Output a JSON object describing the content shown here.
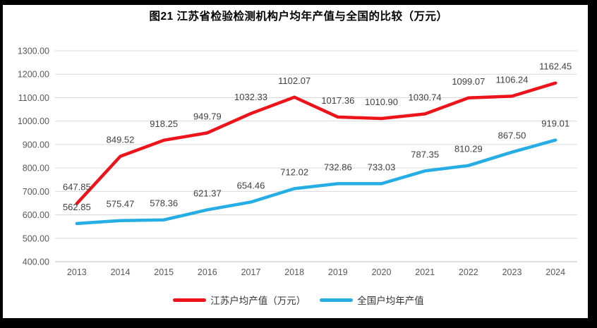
{
  "title": "图21  江苏省检验检测机构户均年产值与全国的比较（万元）",
  "colors": {
    "jiangsu_line": "#ed131a",
    "national_line": "#25ade4",
    "gridline": "#d9d9d9",
    "axis_line": "#bfbfbf",
    "tick_text": "#595959",
    "data_label_text": "#404040",
    "scan_frame": "#000000"
  },
  "chart_data": {
    "type": "line",
    "title": "图21  江苏省检验检测机构户均年产值与全国的比较（万元）",
    "categories": [
      "2013",
      "2014",
      "2015",
      "2016",
      "2017",
      "2018",
      "2019",
      "2020",
      "2021",
      "2022",
      "2023",
      "2024"
    ],
    "series": [
      {
        "name": "江苏户均产值（万元）",
        "color": "#ed131a",
        "values": [
          647.85,
          849.52,
          918.25,
          949.79,
          1032.33,
          1102.07,
          1017.36,
          1010.9,
          1030.74,
          1099.07,
          1106.24,
          1162.45
        ]
      },
      {
        "name": "全国户均年产值",
        "color": "#25ade4",
        "values": [
          562.85,
          575.47,
          578.36,
          621.37,
          654.46,
          712.02,
          732.86,
          733.03,
          787.35,
          810.29,
          867.5,
          919.01
        ]
      }
    ],
    "xlabel": "",
    "ylabel": "",
    "ylim": [
      400,
      1300
    ],
    "ytick_step": 100,
    "ytick_decimals": 2,
    "data_label_decimals": 2,
    "grid": true,
    "legend_position": "bottom"
  }
}
